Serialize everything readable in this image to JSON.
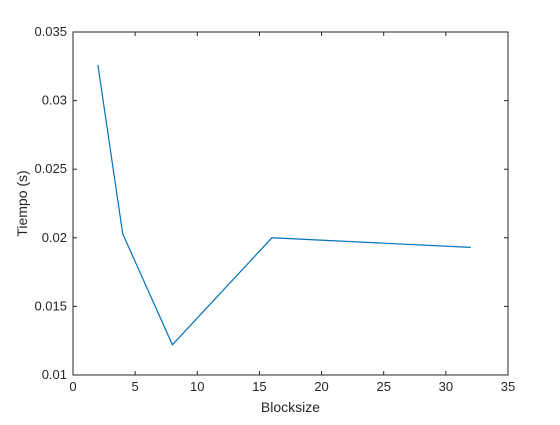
{
  "chart_data": {
    "type": "line",
    "title": "",
    "xlabel": "Blocksize",
    "ylabel": "Tiempo (s)",
    "xlim": [
      0,
      35
    ],
    "ylim": [
      0.01,
      0.035
    ],
    "grid": false,
    "legend": "none",
    "x_ticks": [
      0,
      5,
      10,
      15,
      20,
      25,
      30,
      35
    ],
    "x_tick_labels": [
      "0",
      "5",
      "10",
      "15",
      "20",
      "25",
      "30",
      "35"
    ],
    "y_ticks": [
      0.01,
      0.015,
      0.02,
      0.025,
      0.03,
      0.035
    ],
    "y_tick_labels": [
      "0.01",
      "0.015",
      "0.02",
      "0.025",
      "0.03",
      "0.035"
    ],
    "series": [
      {
        "color": "#0072bd",
        "x": [
          2,
          4,
          8,
          16,
          32
        ],
        "y": [
          0.0326,
          0.0203,
          0.0122,
          0.02,
          0.0193
        ]
      }
    ]
  }
}
